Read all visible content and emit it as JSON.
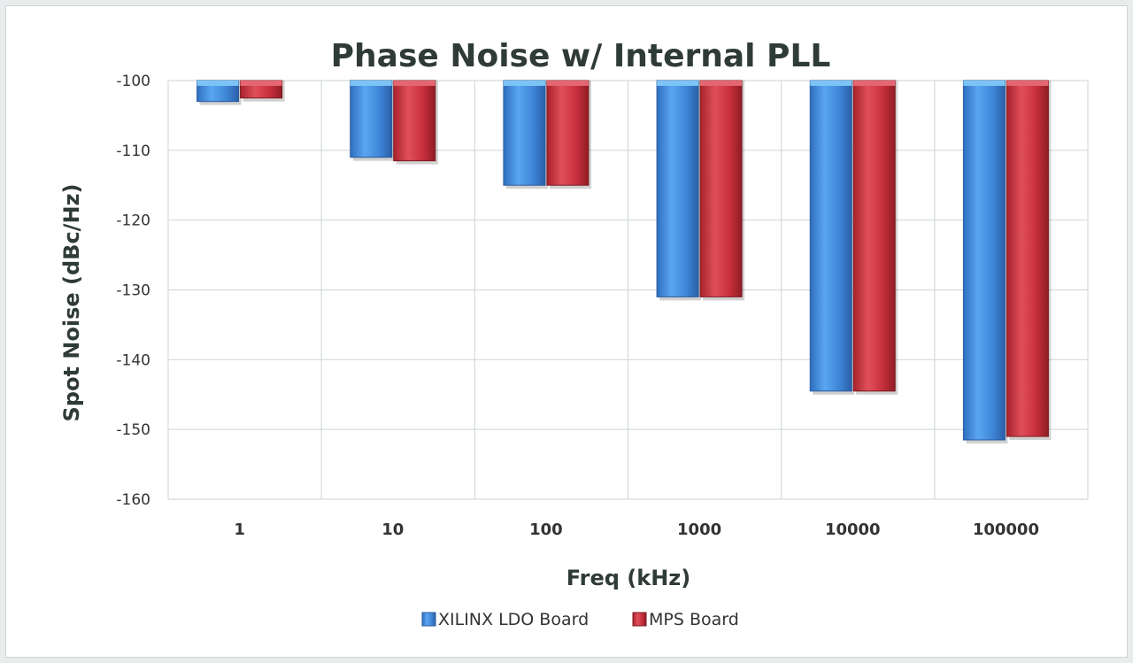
{
  "chart_data": {
    "type": "bar",
    "title": "Phase Noise w/ Internal PLL",
    "xlabel": "Freq (kHz)",
    "ylabel": "Spot Noise (dBc/Hz)",
    "categories": [
      "1",
      "10",
      "100",
      "1000",
      "10000",
      "100000"
    ],
    "ylim": [
      -160,
      -100
    ],
    "yticks": [
      -100,
      -110,
      -120,
      -130,
      -140,
      -150,
      -160
    ],
    "baseline": -100,
    "grid": true,
    "legend_position": "bottom",
    "series": [
      {
        "name": "XILINX LDO Board",
        "color": "#3f86d8",
        "values": [
          -103,
          -111,
          -115,
          -131,
          -144.5,
          -151.5
        ]
      },
      {
        "name": "MPS Board",
        "color": "#c8303c",
        "values": [
          -102.5,
          -111.5,
          -115,
          -131,
          -144.5,
          -151
        ]
      }
    ]
  }
}
